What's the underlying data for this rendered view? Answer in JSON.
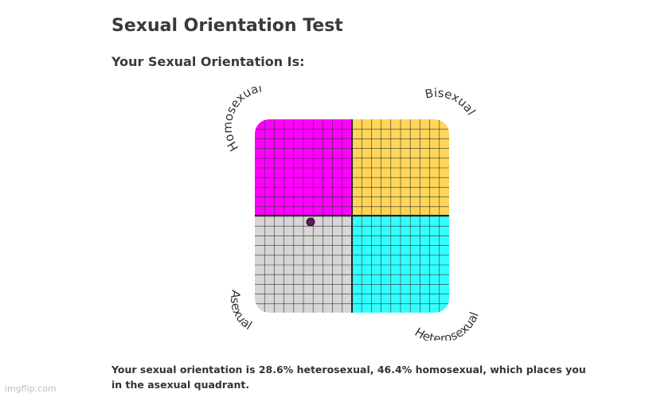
{
  "page": {
    "title": "Sexual Orientation Test",
    "result_heading": "Your Sexual Orientation Is:",
    "result_text": "Your sexual orientation is 28.6% heterosexual, 46.4% homosexual, which places you in the asexual quadrant.",
    "watermark": "imgflip.com"
  },
  "compass": {
    "labels": {
      "top_left": "Homosexual",
      "top_right": "Bisexual",
      "bottom_left": "Asexual",
      "bottom_right": "Heterosexual"
    },
    "colors": {
      "top_left": "#ff00ff",
      "top_right": "#ffd659",
      "bottom_left": "#d6d6d6",
      "bottom_right": "#33ffff",
      "marker": "#5a1a5e"
    },
    "result": {
      "heterosexual_percent": 28.6,
      "homosexual_percent": 46.4
    }
  }
}
